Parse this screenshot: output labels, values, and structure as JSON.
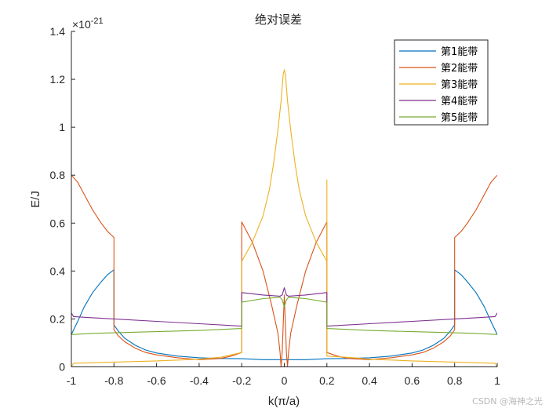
{
  "chart_data": {
    "type": "line",
    "title": "绝对误差",
    "xlabel": "k(π/a)",
    "ylabel": "E/J",
    "y_exponent_label": "×10",
    "y_exponent": "-21",
    "xlim": [
      -1,
      1
    ],
    "ylim": [
      0,
      1.4
    ],
    "xticks": [
      -1,
      -0.8,
      -0.6,
      -0.4,
      -0.2,
      0,
      0.2,
      0.4,
      0.6,
      0.8,
      1
    ],
    "xtick_labels": [
      "-1",
      "-0.8",
      "-0.6",
      "-0.4",
      "-0.2",
      "0",
      "0.2",
      "0.4",
      "0.6",
      "0.8",
      "1"
    ],
    "yticks": [
      0,
      0.2,
      0.4,
      0.6,
      0.8,
      1,
      1.2,
      1.4
    ],
    "ytick_labels": [
      "0",
      "0.2",
      "0.4",
      "0.6",
      "0.8",
      "1",
      "1.2",
      "1.4"
    ],
    "grid": false,
    "legend_position": "upper right",
    "series": [
      {
        "name": "第1能带",
        "color": "#0072BD",
        "x": [
          -1,
          -0.97,
          -0.94,
          -0.9,
          -0.86,
          -0.83,
          -0.8,
          -0.8,
          -0.8,
          -0.78,
          -0.75,
          -0.7,
          -0.65,
          -0.6,
          -0.5,
          -0.4,
          -0.3,
          -0.2,
          -0.1,
          0,
          0.1,
          0.2,
          0.3,
          0.4,
          0.5,
          0.6,
          0.65,
          0.7,
          0.75,
          0.78,
          0.8,
          0.8,
          0.8,
          0.83,
          0.86,
          0.9,
          0.94,
          0.97,
          1
        ],
        "values": [
          0.135,
          0.19,
          0.25,
          0.31,
          0.355,
          0.385,
          0.405,
          0.33,
          0.175,
          0.15,
          0.12,
          0.09,
          0.07,
          0.058,
          0.045,
          0.038,
          0.035,
          0.034,
          0.03,
          0.03,
          0.03,
          0.034,
          0.035,
          0.038,
          0.045,
          0.058,
          0.07,
          0.09,
          0.12,
          0.15,
          0.175,
          0.33,
          0.405,
          0.385,
          0.355,
          0.31,
          0.25,
          0.19,
          0.135
        ]
      },
      {
        "name": "第2能带",
        "color": "#D95319",
        "x": [
          -1,
          -0.97,
          -0.94,
          -0.9,
          -0.86,
          -0.83,
          -0.8,
          -0.8,
          -0.78,
          -0.75,
          -0.7,
          -0.65,
          -0.6,
          -0.5,
          -0.4,
          -0.3,
          -0.25,
          -0.2,
          -0.2,
          -0.15,
          -0.1,
          -0.06,
          -0.03,
          -0.02,
          -0.015,
          -0.01,
          0,
          0.01,
          0.015,
          0.02,
          0.03,
          0.06,
          0.1,
          0.15,
          0.2,
          0.2,
          0.25,
          0.3,
          0.4,
          0.5,
          0.6,
          0.65,
          0.7,
          0.75,
          0.78,
          0.8,
          0.8,
          0.83,
          0.86,
          0.9,
          0.94,
          0.97,
          1
        ],
        "values": [
          0.8,
          0.77,
          0.72,
          0.655,
          0.6,
          0.565,
          0.54,
          0.155,
          0.13,
          0.105,
          0.078,
          0.06,
          0.05,
          0.038,
          0.03,
          0.035,
          0.045,
          0.06,
          0.605,
          0.52,
          0.4,
          0.26,
          0.14,
          0.06,
          0.0,
          0.06,
          0.3,
          0.06,
          0.0,
          0.06,
          0.14,
          0.26,
          0.4,
          0.52,
          0.605,
          0.06,
          0.045,
          0.035,
          0.03,
          0.038,
          0.05,
          0.06,
          0.078,
          0.105,
          0.13,
          0.155,
          0.54,
          0.565,
          0.6,
          0.655,
          0.72,
          0.77,
          0.8
        ]
      },
      {
        "name": "第3能带",
        "color": "#EDB120",
        "x": [
          -1,
          -0.99,
          -0.8,
          -0.6,
          -0.4,
          -0.3,
          -0.2,
          -0.2,
          -0.15,
          -0.1,
          -0.07,
          -0.05,
          -0.03,
          -0.015,
          -0.005,
          0,
          0.005,
          0.015,
          0.03,
          0.05,
          0.07,
          0.1,
          0.15,
          0.2,
          0.2,
          0.2,
          0.2,
          0.3,
          0.4,
          0.6,
          0.8,
          0.99,
          1
        ],
        "values": [
          0.0,
          0.015,
          0.02,
          0.025,
          0.032,
          0.04,
          0.06,
          0.44,
          0.52,
          0.63,
          0.74,
          0.85,
          0.99,
          1.11,
          1.22,
          1.24,
          1.22,
          1.11,
          0.99,
          0.85,
          0.74,
          0.63,
          0.52,
          0.44,
          0.78,
          0.78,
          0.045,
          0.04,
          0.032,
          0.025,
          0.02,
          0.015,
          0.0
        ]
      },
      {
        "name": "第4能带",
        "color": "#7E2F8E",
        "x": [
          -1,
          -0.99,
          -0.9,
          -0.8,
          -0.6,
          -0.4,
          -0.2,
          -0.2,
          -0.1,
          -0.02,
          -0.01,
          0,
          0.01,
          0.02,
          0.1,
          0.2,
          0.2,
          0.4,
          0.6,
          0.8,
          0.9,
          0.99,
          1
        ],
        "values": [
          0.225,
          0.21,
          0.205,
          0.2,
          0.19,
          0.18,
          0.17,
          0.31,
          0.3,
          0.295,
          0.3,
          0.33,
          0.3,
          0.295,
          0.3,
          0.31,
          0.17,
          0.18,
          0.19,
          0.2,
          0.205,
          0.21,
          0.225
        ]
      },
      {
        "name": "第5能带",
        "color": "#77AC30",
        "x": [
          -1,
          -0.9,
          -0.8,
          -0.6,
          -0.4,
          -0.2,
          -0.2,
          -0.1,
          -0.02,
          -0.01,
          0,
          0.01,
          0.02,
          0.1,
          0.2,
          0.2,
          0.4,
          0.6,
          0.8,
          0.9,
          1
        ],
        "values": [
          0.135,
          0.14,
          0.142,
          0.147,
          0.152,
          0.16,
          0.27,
          0.285,
          0.29,
          0.28,
          0.25,
          0.28,
          0.29,
          0.285,
          0.27,
          0.16,
          0.152,
          0.147,
          0.142,
          0.14,
          0.135
        ]
      }
    ]
  },
  "watermark": "CSDN @海神之光"
}
